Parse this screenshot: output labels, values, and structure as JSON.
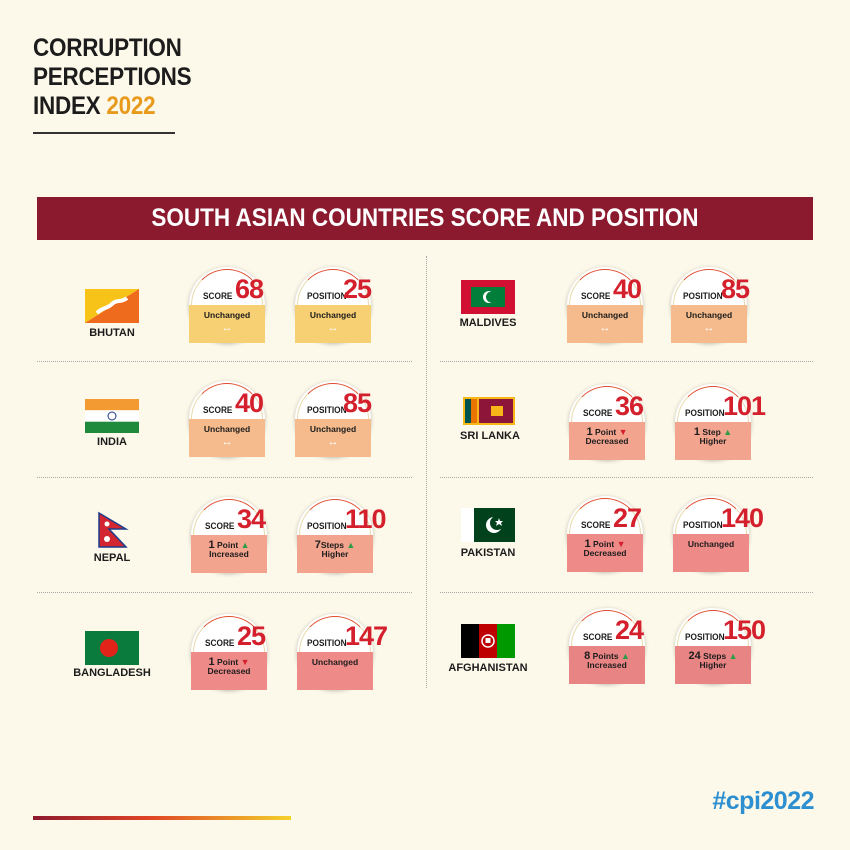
{
  "title": {
    "line1": "CORRUPTION",
    "line2": "PERCEPTIONS",
    "line3_prefix": "INDEX ",
    "year": "2022"
  },
  "banner": "SOUTH ASIAN COUNTRIES SCORE AND POSITION",
  "labels": {
    "score": "SCORE",
    "position": "POSITION"
  },
  "countries": [
    {
      "name": "BHUTAN",
      "score": "68",
      "score_change": [
        "Unchanged"
      ],
      "position": "25",
      "position_change": [
        "Unchanged"
      ]
    },
    {
      "name": "INDIA",
      "score": "40",
      "score_change": [
        "Unchanged"
      ],
      "position": "85",
      "position_change": [
        "Unchanged"
      ]
    },
    {
      "name": "NEPAL",
      "score": "34",
      "score_change": [
        "1",
        "Point",
        "Increased"
      ],
      "position": "110",
      "position_change": [
        "7",
        "Steps",
        "Higher"
      ]
    },
    {
      "name": "BANGLADESH",
      "score": "25",
      "score_change": [
        "1",
        "Point",
        "Decreased"
      ],
      "position": "147",
      "position_change": [
        "Unchanged"
      ]
    },
    {
      "name": "MALDIVES",
      "score": "40",
      "score_change": [
        "Unchanged"
      ],
      "position": "85",
      "position_change": [
        "Unchanged"
      ]
    },
    {
      "name": "SRI LANKA",
      "score": "36",
      "score_change": [
        "1",
        "Point",
        "Decreased"
      ],
      "position": "101",
      "position_change": [
        "1",
        "Step",
        "Higher"
      ]
    },
    {
      "name": "PAKISTAN",
      "score": "27",
      "score_change": [
        "1",
        "Point",
        "Decreased"
      ],
      "position": "140",
      "position_change": [
        "Unchanged"
      ]
    },
    {
      "name": "AFGHANISTAN",
      "score": "24",
      "score_change": [
        "8",
        "Points",
        "Increased"
      ],
      "position": "150",
      "position_change": [
        "24",
        "Steps",
        "Higher"
      ]
    }
  ],
  "hashtag": "#cpi2022",
  "colors": {
    "banner": "#8c1a2e",
    "number": "#d4202c",
    "year": "#e89a1c",
    "hashtag": "#2d8fd0",
    "arrow_up": "#2f9d48",
    "arrow_down": "#d4202c"
  }
}
